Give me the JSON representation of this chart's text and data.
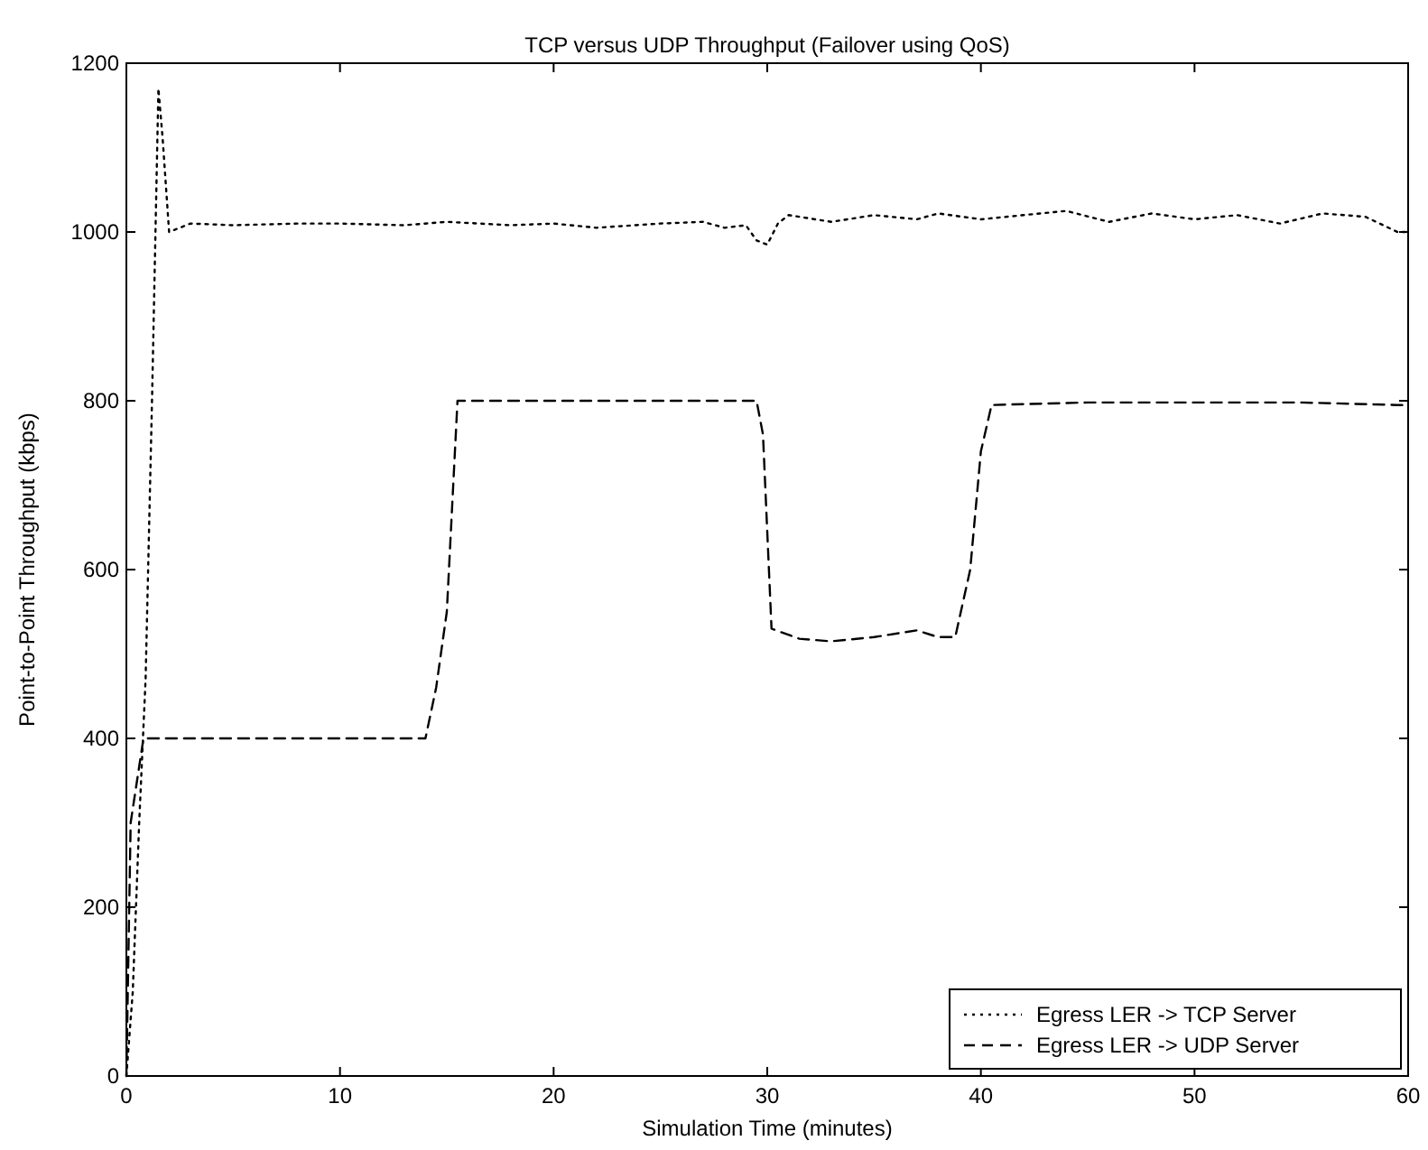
{
  "chart_data": {
    "type": "line",
    "title": "TCP versus UDP Throughput (Failover using QoS)",
    "xlabel": "Simulation Time (minutes)",
    "ylabel": "Point-to-Point Throughput (kbps)",
    "xlim": [
      0,
      60
    ],
    "xticks": [
      0,
      10,
      20,
      30,
      40,
      50,
      60
    ],
    "ylim": [
      0,
      1200
    ],
    "yticks": [
      0,
      200,
      400,
      600,
      800,
      1000,
      1200
    ],
    "grid": false,
    "legend": "bottom right",
    "marker": "none",
    "series": [
      {
        "name": "Egress LER -> TCP Server",
        "color": "#000000",
        "line_style": "dotted",
        "x": [
          0,
          0.3,
          0.6,
          0.9,
          1.2,
          1.5,
          1.7,
          2,
          3,
          5,
          8,
          10,
          13,
          15,
          18,
          20,
          22,
          25,
          27,
          28,
          29,
          29.5,
          30,
          30.5,
          31,
          33,
          35,
          37,
          38,
          40,
          42,
          44,
          46,
          48,
          50,
          52,
          54,
          56,
          58,
          59.5,
          60
        ],
        "values": [
          0,
          100,
          300,
          470,
          800,
          1170,
          1110,
          1000,
          1010,
          1008,
          1010,
          1010,
          1008,
          1012,
          1008,
          1010,
          1005,
          1010,
          1012,
          1005,
          1008,
          990,
          985,
          1010,
          1020,
          1012,
          1020,
          1015,
          1022,
          1015,
          1020,
          1025,
          1012,
          1022,
          1015,
          1020,
          1010,
          1022,
          1018,
          1000,
          1000
        ]
      },
      {
        "name": "Egress LER -> UDP Server",
        "color": "#000000",
        "line_style": "dashed",
        "x": [
          0,
          0.2,
          0.5,
          0.8,
          2,
          5,
          10,
          14,
          14.5,
          15,
          15.5,
          16,
          20,
          25,
          29.5,
          29.8,
          30.2,
          31.5,
          33,
          35,
          37,
          38,
          38.8,
          39.5,
          40,
          40.5,
          45,
          50,
          55,
          59.5,
          60
        ],
        "values": [
          0,
          300,
          350,
          400,
          400,
          400,
          400,
          400,
          460,
          550,
          800,
          800,
          800,
          800,
          800,
          760,
          530,
          518,
          515,
          520,
          528,
          520,
          520,
          600,
          740,
          795,
          798,
          798,
          798,
          795,
          795
        ]
      }
    ]
  }
}
